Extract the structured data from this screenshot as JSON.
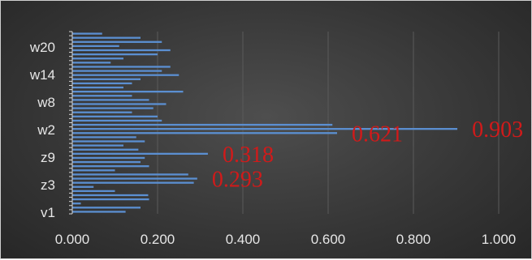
{
  "chart_data": {
    "type": "bar",
    "orientation": "horizontal",
    "title": "",
    "xlabel": "",
    "ylabel": "",
    "xlim": [
      0,
      1
    ],
    "x_ticks": [
      "0.000",
      "0.200",
      "0.400",
      "0.600",
      "0.800",
      "1.000"
    ],
    "y_tick_labels": [
      "v1",
      "z3",
      "z9",
      "w2",
      "w8",
      "w14",
      "w20"
    ],
    "grid": true,
    "legend": "none",
    "bar_color": "#5b8fd1",
    "label_color": "#d11a1a",
    "values": [
      0.125,
      0.16,
      0.02,
      0.18,
      0.178,
      0.1,
      0.05,
      0.285,
      0.293,
      0.272,
      0.1,
      0.18,
      0.16,
      0.17,
      0.318,
      0.155,
      0.12,
      0.17,
      0.15,
      0.621,
      0.903,
      0.61,
      0.21,
      0.2,
      0.14,
      0.19,
      0.22,
      0.18,
      0.14,
      0.26,
      0.12,
      0.14,
      0.16,
      0.25,
      0.21,
      0.23,
      0.09,
      0.12,
      0.2,
      0.23,
      0.11,
      0.21,
      0.16,
      0.07
    ],
    "data_labels": [
      {
        "text": "0.293",
        "value": 0.293
      },
      {
        "text": "0.318",
        "value": 0.318
      },
      {
        "text": "0.621",
        "value": 0.621
      },
      {
        "text": "0.903",
        "value": 0.903
      }
    ]
  }
}
